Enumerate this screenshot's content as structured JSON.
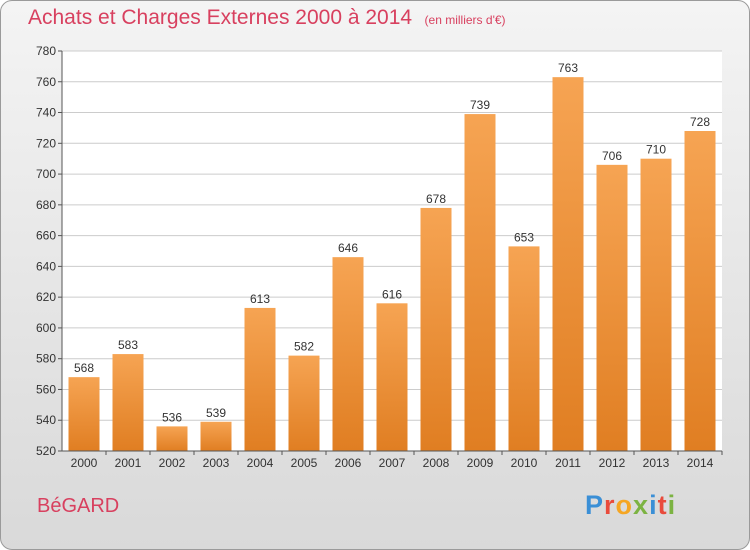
{
  "header": {
    "title": "Achats et Charges Externes 2000 à 2014",
    "subtitle": "(en milliers d'€)"
  },
  "footer": {
    "commune": "BéGARD",
    "logo_text": "Proxiti"
  },
  "colors": {
    "title": "#d8405f",
    "bar_top": "#f6a453",
    "bar_bottom": "#e07e22",
    "grid": "#cccccc",
    "logo_letters": [
      "#3a8fd6",
      "#e94b3c",
      "#f5a623",
      "#7cb342",
      "#3a8fd6",
      "#e94b3c",
      "#7cb342"
    ]
  },
  "chart_data": {
    "type": "bar",
    "title": "Achats et Charges Externes 2000 à 2014",
    "subtitle": "(en milliers d'€)",
    "categories": [
      "2000",
      "2001",
      "2002",
      "2003",
      "2004",
      "2005",
      "2006",
      "2007",
      "2008",
      "2009",
      "2010",
      "2011",
      "2012",
      "2013",
      "2014"
    ],
    "values": [
      568,
      583,
      536,
      539,
      613,
      582,
      646,
      616,
      678,
      739,
      653,
      763,
      706,
      710,
      728
    ],
    "ylim": [
      520,
      780
    ],
    "yticks": [
      520,
      540,
      560,
      580,
      600,
      620,
      640,
      660,
      680,
      700,
      720,
      740,
      760,
      780
    ],
    "xlabel": "",
    "ylabel": "",
    "grid": true,
    "data_labels": true
  }
}
